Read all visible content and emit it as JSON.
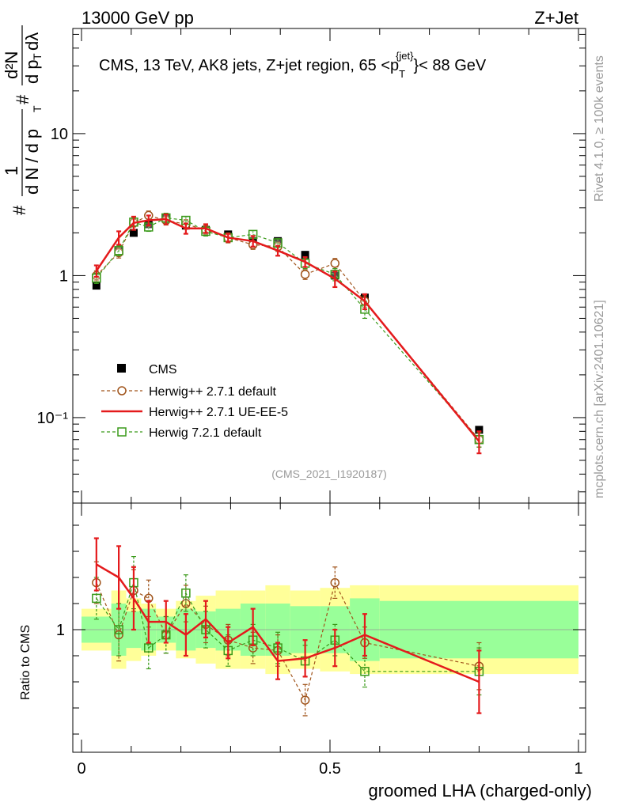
{
  "header": {
    "left": "13000 GeV pp",
    "right": "Z+Jet"
  },
  "side_texts": {
    "top": "Rivet 4.1.0, ≥ 100k events",
    "bottom": "mcplots.cern.ch [arXiv:2401.10621]"
  },
  "main_title": {
    "prefix": "CMS, 13 TeV, AK8 jets, Z+jet region, 65 <p",
    "sub": "T",
    "sup": "{jet}",
    "suffix": "}< 88 GeV"
  },
  "ylabel_parts": {
    "hash1": "#",
    "one": "1",
    "den": "d N / d p",
    "den_sub": "T",
    "hash2": "#",
    "num2": "d²N",
    "den2": "d p",
    "den2_sub": "T",
    "den2_tail": " dλ"
  },
  "analysis_id": "(CMS_2021_I1920187)",
  "ratio_ylabel": "Ratio to CMS",
  "colors": {
    "cms": "#000000",
    "herwig271": "#a0541b",
    "ueee5": "#e41a1c",
    "herwig721": "#3a9a1a",
    "band_inner": "#99ff99",
    "band_outer": "#ffff99"
  },
  "chart_data": [
    {
      "type": "line",
      "panel": "main",
      "yscale": "log",
      "ylim": [
        0.025,
        55
      ],
      "xlim": [
        -0.03,
        1.02
      ],
      "ytick_labels": [
        "10⁻¹",
        "1",
        "10"
      ],
      "bins": [
        [
          0.0,
          0.06
        ],
        [
          0.06,
          0.09
        ],
        [
          0.09,
          0.12
        ],
        [
          0.12,
          0.15
        ],
        [
          0.15,
          0.19
        ],
        [
          0.19,
          0.23
        ],
        [
          0.23,
          0.27
        ],
        [
          0.27,
          0.32
        ],
        [
          0.32,
          0.37
        ],
        [
          0.37,
          0.42
        ],
        [
          0.42,
          0.48
        ],
        [
          0.48,
          0.54
        ],
        [
          0.54,
          0.6
        ],
        [
          0.6,
          1.0
        ]
      ],
      "x": [
        0.03,
        0.075,
        0.105,
        0.135,
        0.17,
        0.21,
        0.25,
        0.295,
        0.345,
        0.395,
        0.45,
        0.51,
        0.57,
        0.8
      ],
      "series": [
        {
          "name": "CMS",
          "style": "square",
          "values": [
            0.85,
            1.5,
            2.0,
            2.3,
            2.55,
            2.25,
            2.1,
            1.95,
            1.75,
            1.75,
            1.4,
            1.0,
            0.7,
            0.082
          ],
          "errors": [
            0.04,
            0.05,
            0.06,
            0.06,
            0.07,
            0.06,
            0.06,
            0.05,
            0.05,
            0.05,
            0.04,
            0.04,
            0.03,
            0.003
          ],
          "band_inner": [
            0.05,
            0.1,
            0.07,
            0.08,
            0.05,
            0.08,
            0.07,
            0.08,
            0.1,
            0.1,
            0.09,
            0.09,
            0.12,
            0.11
          ],
          "band_outer": [
            0.08,
            0.15,
            0.12,
            0.1,
            0.08,
            0.11,
            0.13,
            0.15,
            0.15,
            0.17,
            0.15,
            0.16,
            0.17,
            0.17
          ]
        },
        {
          "name": "Herwig++ 2.7.1 default",
          "style": "circle-dashed",
          "values": [
            1.0,
            1.45,
            2.35,
            2.65,
            2.45,
            2.3,
            2.1,
            1.85,
            1.65,
            1.6,
            1.02,
            1.22,
            0.66,
            0.07
          ],
          "errors": [
            0.08,
            0.12,
            0.15,
            0.2,
            0.18,
            0.18,
            0.15,
            0.15,
            0.12,
            0.12,
            0.08,
            0.1,
            0.06,
            0.008
          ]
        },
        {
          "name": "Herwig++ 2.7.1 UE-EE-5",
          "style": "solid",
          "values": [
            1.08,
            1.85,
            2.35,
            2.45,
            2.5,
            2.15,
            2.15,
            1.85,
            1.75,
            1.5,
            1.25,
            0.95,
            0.66,
            0.068
          ],
          "errors": [
            0.1,
            0.2,
            0.25,
            0.2,
            0.2,
            0.18,
            0.15,
            0.12,
            0.15,
            0.12,
            0.1,
            0.12,
            0.08,
            0.012
          ]
        },
        {
          "name": "Herwig 7.2.1 default",
          "style": "square-open-dashed",
          "values": [
            0.96,
            1.5,
            2.38,
            2.2,
            2.55,
            2.45,
            2.05,
            1.85,
            1.95,
            1.7,
            1.22,
            1.02,
            0.58,
            0.07
          ],
          "errors": [
            0.08,
            0.12,
            0.15,
            0.15,
            0.2,
            0.15,
            0.15,
            0.12,
            0.12,
            0.12,
            0.1,
            0.1,
            0.08,
            0.008
          ]
        }
      ],
      "legend": [
        "CMS",
        "Herwig++ 2.7.1 default",
        "Herwig++ 2.7.1 UE-EE-5",
        "Herwig 7.2.1 default"
      ],
      "legend_position": "lower-left"
    },
    {
      "type": "line",
      "panel": "ratio",
      "ylabel": "Ratio to CMS",
      "xlabel": "groomed LHA (charged-only)",
      "ylim": [
        0.5,
        1.5
      ],
      "xlim": [
        -0.03,
        1.02
      ],
      "ytick_labels": [
        "1"
      ],
      "xtick_labels": [
        "0",
        "0.5",
        "1"
      ],
      "x": [
        0.03,
        0.075,
        0.105,
        0.135,
        0.17,
        0.21,
        0.25,
        0.295,
        0.345,
        0.395,
        0.45,
        0.51,
        0.57,
        0.8
      ],
      "series": [
        {
          "name": "Herwig++ 2.7.1 default",
          "values": [
            1.18,
            0.98,
            1.15,
            1.12,
            0.98,
            1.1,
            1.02,
            0.96,
            0.93,
            0.92,
            0.73,
            1.18,
            0.95,
            0.86
          ],
          "errors": [
            0.08,
            0.1,
            0.08,
            0.07,
            0.07,
            0.07,
            0.07,
            0.06,
            0.06,
            0.06,
            0.06,
            0.06,
            0.06,
            0.09
          ]
        },
        {
          "name": "Herwig++ 2.7.1 UE-EE-5",
          "values": [
            1.25,
            1.2,
            1.12,
            1.03,
            1.03,
            0.98,
            1.04,
            0.95,
            1.01,
            0.88,
            0.89,
            0.93,
            0.98,
            0.8
          ],
          "errors": [
            0.1,
            0.12,
            0.12,
            0.08,
            0.08,
            0.08,
            0.07,
            0.06,
            0.07,
            0.07,
            0.07,
            0.07,
            0.08,
            0.12
          ]
        },
        {
          "name": "Herwig 7.2.1 default",
          "values": [
            1.12,
            1.0,
            1.18,
            0.93,
            0.98,
            1.14,
            1.0,
            0.92,
            0.96,
            0.93,
            0.88,
            0.96,
            0.84,
            0.84
          ],
          "errors": [
            0.08,
            0.1,
            0.1,
            0.08,
            0.07,
            0.07,
            0.07,
            0.06,
            0.06,
            0.06,
            0.06,
            0.06,
            0.06,
            0.09
          ]
        }
      ]
    }
  ]
}
